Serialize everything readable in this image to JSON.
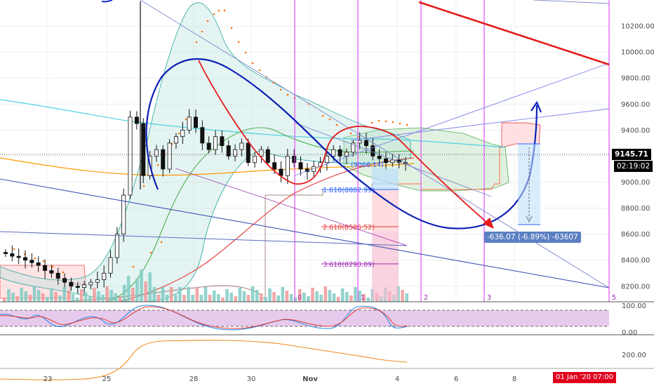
{
  "chart_data": {
    "type": "candlestick",
    "price_axis": {
      "ticks": [
        "10200.00",
        "10000.00",
        "9800.00",
        "9600.00",
        "9400.00",
        "9200.00",
        "9000.00",
        "8800.00",
        "8600.00",
        "8400.00",
        "8200.00"
      ],
      "ylim": [
        8080,
        10400
      ]
    },
    "time_axis": {
      "ticks": [
        "23",
        "25",
        "28",
        "30",
        "Nov",
        "4",
        "6",
        "8"
      ],
      "current_date_label": "01 Jan '20  07:00"
    },
    "last_price": {
      "value": "9145.71",
      "countdown": "02:19:02",
      "color": "#26a69a"
    },
    "candles_approx_close": [
      8450,
      8430,
      8420,
      8400,
      8380,
      8360,
      8320,
      8300,
      8260,
      8230,
      8200,
      8190,
      8210,
      8230,
      8250,
      8300,
      8420,
      8600,
      8900,
      9500,
      9450,
      9050,
      9200,
      9250,
      9100,
      9300,
      9350,
      9400,
      9500,
      9420,
      9300,
      9250,
      9350,
      9280,
      9200,
      9250,
      9300,
      9150,
      9200,
      9250,
      9150,
      9100,
      9050,
      9200,
      9150,
      9100,
      9080,
      9120,
      9150,
      9200,
      9250,
      9200,
      9230,
      9300,
      9320,
      9280,
      9200,
      9180,
      9150,
      9170,
      9150,
      9145
    ],
    "fibonacci_levels": [
      {
        "label": "1.618(8882.99)",
        "value": 8882.99,
        "color": "#2962ff"
      },
      {
        "label": "2.618(8586.52)",
        "value": 8586.52,
        "color": "#e53935"
      },
      {
        "label": "3.618(8290.09)",
        "value": 8290.09,
        "color": "#9c27b0"
      },
      {
        "label": "(9066.14)",
        "value": 9066.14,
        "color": "#2962ff"
      }
    ],
    "measure_label": "-636.07 (-6.89%) -63607",
    "cycle_labels": [
      "0",
      "1",
      "2",
      "3",
      "5"
    ],
    "stoch_panel": {
      "ticks": [
        "100.00",
        "0.00"
      ]
    },
    "lower_panel": {
      "ticks": [
        "200.00"
      ]
    }
  },
  "colors": {
    "up": "#26a69a",
    "down": "#ef5350",
    "cycle_line": "#e040fb",
    "annotation_blue": "#0d1fb5",
    "annotation_red": "#e31b1b",
    "stoch_fill": "#e1bee7"
  }
}
